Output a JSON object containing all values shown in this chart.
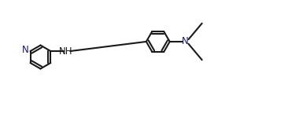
{
  "bg_color": "#ffffff",
  "line_color": "#1a1a1a",
  "line_width": 1.5,
  "label_color_N": "#191970",
  "font_size": 8.5,
  "fig_w": 3.66,
  "fig_h": 1.45,
  "dpi": 100,
  "ring_r": 0.42,
  "xlim": [
    0.0,
    10.0
  ],
  "ylim": [
    0.0,
    4.0
  ]
}
